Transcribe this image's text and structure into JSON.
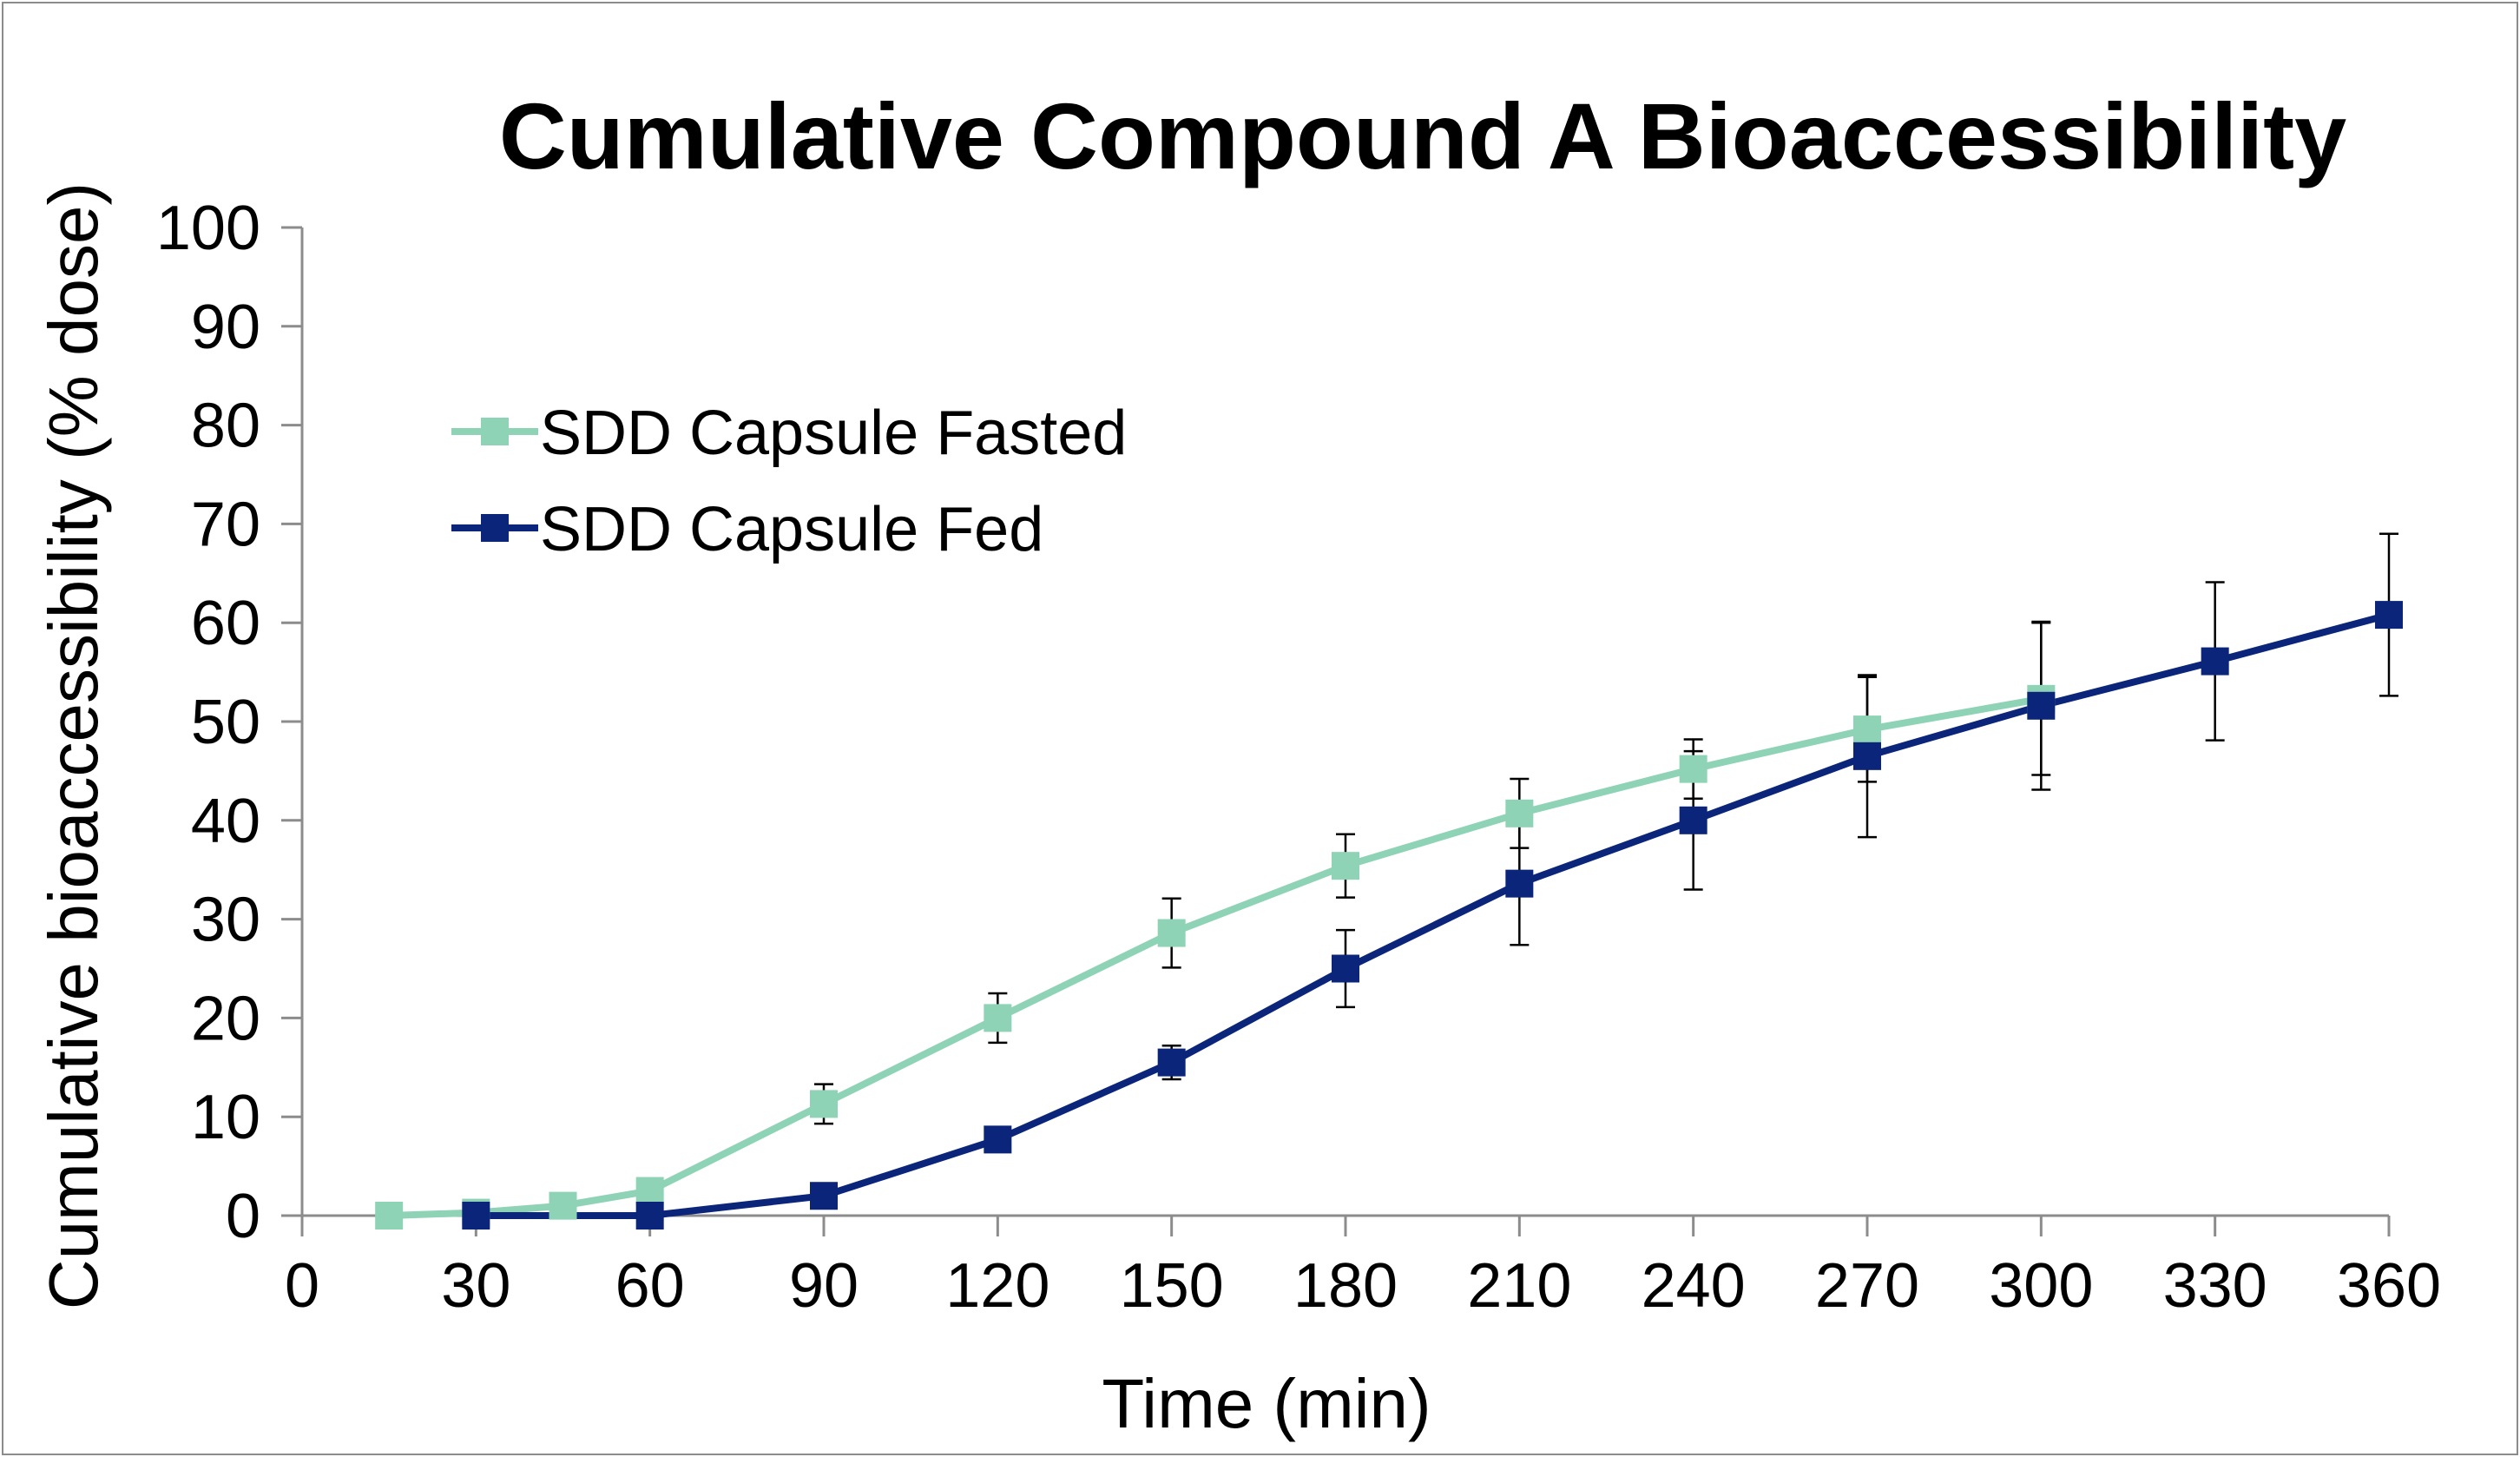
{
  "chart_data": {
    "type": "line",
    "title": "Cumulative Compound A Bioaccessibility",
    "xlabel": "Time (min)",
    "ylabel": "Cumulative bioaccessibility (% dose)",
    "xlim": [
      0,
      360
    ],
    "ylim": [
      0,
      100
    ],
    "x_ticks": [
      "0",
      "30",
      "60",
      "90",
      "120",
      "150",
      "180",
      "210",
      "240",
      "270",
      "300",
      "330",
      "360"
    ],
    "y_ticks": [
      "0",
      "10",
      "20",
      "30",
      "40",
      "50",
      "60",
      "70",
      "80",
      "90",
      "100"
    ],
    "grid": false,
    "legend_position": "upper-left",
    "series": [
      {
        "name": "SDD Capsule Fasted",
        "color": "#8fd3b6",
        "marker": "square",
        "x": [
          15,
          30,
          45,
          60,
          90,
          120,
          150,
          180,
          210,
          240,
          270,
          300
        ],
        "y": [
          0,
          0.3,
          1,
          2.5,
          11.3,
          20,
          28.6,
          35.4,
          40.7,
          45.2,
          49.2,
          52.3
        ],
        "error": [
          0,
          0,
          0,
          0,
          2,
          2.5,
          3.5,
          3.2,
          3.5,
          3,
          5.3,
          7.7
        ]
      },
      {
        "name": "SDD Capsule Fed",
        "color": "#0a2579",
        "marker": "square",
        "x": [
          30,
          60,
          90,
          120,
          150,
          180,
          210,
          240,
          270,
          300,
          330,
          360
        ],
        "y": [
          0,
          0,
          2,
          7.7,
          15.5,
          25,
          33.6,
          40,
          46.5,
          51.6,
          56.1,
          60.8
        ],
        "error": [
          0,
          0,
          0,
          0,
          1.7,
          3.9,
          6.2,
          7,
          8.2,
          8.5,
          8,
          8.2
        ]
      }
    ]
  }
}
